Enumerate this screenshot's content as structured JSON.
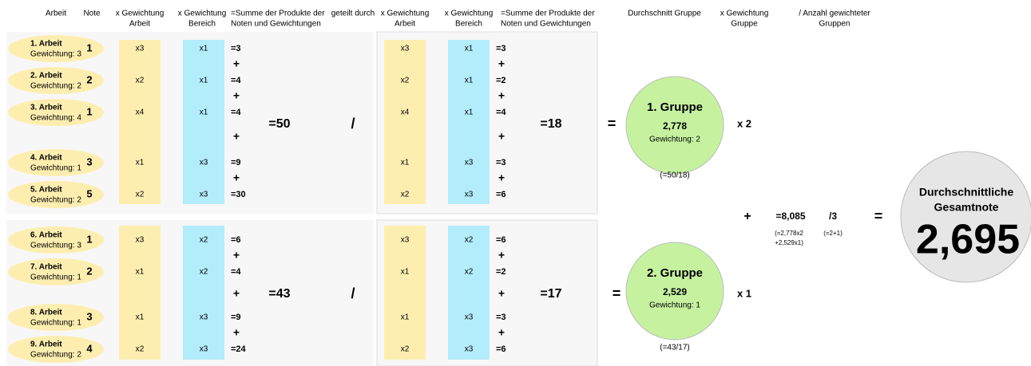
{
  "headers": [
    [
      "Arbeit"
    ],
    [
      "Note"
    ],
    [
      "x Gewichtung",
      "Arbeit"
    ],
    [
      "x Gewichtung",
      "Bereich"
    ],
    [
      "=Summe der Produkte der",
      "Noten und Gewichtungen"
    ],
    [
      "geteilt durch"
    ],
    [
      "x Gewichtung",
      "Arbeit"
    ],
    [
      "x Gewichtung",
      "Bereich"
    ],
    [
      "=Summe der Produkte der",
      "Noten und Gewichtungen"
    ],
    [
      "Durchschnitt Gruppe"
    ],
    [
      "x Gewichtung",
      "Gruppe"
    ],
    [
      "/ Anzahl gewichteter",
      "Gruppen"
    ]
  ],
  "signs": {
    "plus": "+",
    "divide": "/",
    "equals": "="
  },
  "groups": [
    {
      "items": [
        {
          "title": "1. Arbeit",
          "weight": "Gewichtung: 3",
          "note": "1",
          "left": [
            "x3",
            "x1",
            "=3"
          ],
          "right": [
            "x3",
            "x1",
            "=3"
          ]
        },
        {
          "title": "2. Arbeit",
          "weight": "Gewichtung: 2",
          "note": "2",
          "left": [
            "x2",
            "x1",
            "=4"
          ],
          "right": [
            "x2",
            "x1",
            "=2"
          ]
        },
        {
          "title": "3. Arbeit",
          "weight": "Gewichtung: 4",
          "note": "1",
          "left": [
            "x4",
            "x1",
            "=4"
          ],
          "right": [
            "x4",
            "x1",
            "=4"
          ]
        },
        {
          "title": "4. Arbeit",
          "weight": "Gewichtung: 1",
          "note": "3",
          "left": [
            "x1",
            "x3",
            "=9"
          ],
          "right": [
            "x1",
            "x3",
            "=3"
          ]
        },
        {
          "title": "5. Arbeit",
          "weight": "Gewichtung: 2",
          "note": "5",
          "left": [
            "x2",
            "x3",
            "=30"
          ],
          "right": [
            "x2",
            "x3",
            "=6"
          ]
        }
      ],
      "sum": "=50",
      "sum2": "=18",
      "circle": {
        "title": "1. Gruppe",
        "value": "2,778",
        "weight": "Gewichtung: 2"
      },
      "calc": "(=50/18)",
      "factor": "x 2"
    },
    {
      "items": [
        {
          "title": "6. Arbeit",
          "weight": "Gewichtung: 3",
          "note": "1",
          "left": [
            "x3",
            "x2",
            "=6"
          ],
          "right": [
            "x3",
            "x2",
            "=6"
          ]
        },
        {
          "title": "7. Arbeit",
          "weight": "Gewichtung: 1",
          "note": "2",
          "left": [
            "x1",
            "x2",
            "=4"
          ],
          "right": [
            "x1",
            "x2",
            "=2"
          ]
        },
        {
          "title": "8. Arbeit",
          "weight": "Gewichtung: 1",
          "note": "3",
          "left": [
            "x1",
            "x3",
            "=9"
          ],
          "right": [
            "x1",
            "x3",
            "=3"
          ]
        },
        {
          "title": "9. Arbeit",
          "weight": "Gewichtung: 2",
          "note": "4",
          "left": [
            "x2",
            "x3",
            "=24"
          ],
          "right": [
            "x2",
            "x3",
            "=6"
          ]
        }
      ],
      "sum": "=43",
      "sum2": "=17",
      "circle": {
        "title": "2. Gruppe",
        "value": "2,529",
        "weight": "Gewichtung: 1"
      },
      "calc": "(=43/17)",
      "factor": "x 1"
    }
  ],
  "total": {
    "sum": "=8,085",
    "sum_calc": [
      "(=2,778x2",
      "+2,529x1)"
    ],
    "divisor": "/3",
    "divisor_calc": "(=2+1)",
    "title": [
      "Durchschnittliche",
      "Gesamtnote"
    ],
    "value": "2,695"
  }
}
